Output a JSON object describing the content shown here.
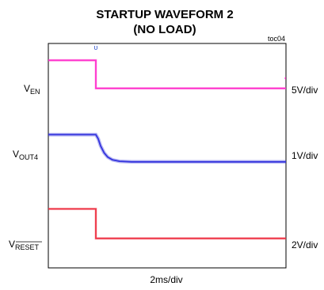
{
  "chart_data": {
    "type": "line",
    "title_line1": "STARTUP WAVEFORM 2",
    "title_line2": "(NO LOAD)",
    "figure_id": "toc04",
    "xlabel": "2ms/div",
    "x_divisions": 10,
    "y_divisions": 8,
    "grid": false,
    "series": [
      {
        "name": "VEN",
        "label_main": "V",
        "label_sub": "EN",
        "scale": "5V/div",
        "color": "#ff33cc",
        "x": [
          0,
          2,
          2,
          10
        ],
        "y": [
          7.4,
          7.4,
          6.4,
          6.4
        ]
      },
      {
        "name": "VOUT4",
        "label_main": "V",
        "label_sub": "OUT4",
        "scale": "1V/div",
        "color": "#3333dd",
        "x": [
          0,
          2,
          2.1,
          2.2,
          2.35,
          2.5,
          2.7,
          3.0,
          3.5,
          10
        ],
        "y": [
          4.75,
          4.75,
          4.6,
          4.35,
          4.1,
          3.95,
          3.85,
          3.8,
          3.78,
          3.78
        ]
      },
      {
        "name": "VRESET",
        "label_main": "V",
        "label_sub": "RESET",
        "scale": "2V/div",
        "color": "#ee3344",
        "x": [
          0,
          2,
          2,
          10
        ],
        "y": [
          2.1,
          2.1,
          1.05,
          1.05
        ]
      }
    ]
  }
}
